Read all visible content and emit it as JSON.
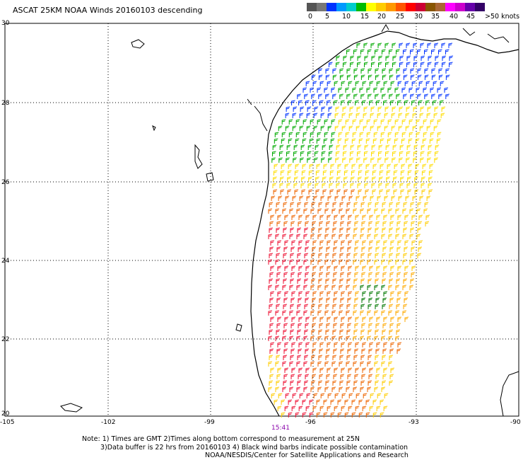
{
  "title": "ASCAT 25KM NOAA Winds 20160103 descending",
  "legend": {
    "colors": [
      "#555555",
      "#777777",
      "#0033ff",
      "#0099ff",
      "#00cccc",
      "#00bb00",
      "#ffff00",
      "#ffcc00",
      "#ff9900",
      "#ff5500",
      "#ff0000",
      "#cc0033",
      "#885500",
      "#aa6633",
      "#ff00ff",
      "#cc00cc",
      "#6600aa",
      "#330066"
    ],
    "labels": [
      "0",
      "5",
      "10",
      "15",
      "20",
      "25",
      "30",
      "35",
      "40",
      "45",
      ">50 knots"
    ]
  },
  "lat_labels": [
    "30",
    "28",
    "26",
    "24",
    "22",
    "20"
  ],
  "lon_labels": [
    "-105",
    "-102",
    "-99",
    "-96",
    "-93",
    "-90"
  ],
  "time_label": "15:41",
  "notes": [
    "Note: 1) Times are GMT 2)Times along bottom correspond to measurement at 25N",
    "3)Data buffer is 22 hrs from 20160103 4) Black wind barbs indicate possible contamination",
    "NOAA/NESDIS/Center for Satellite Applications and Research"
  ],
  "map_extent": {
    "lon_min": -105,
    "lon_max": -90,
    "lat_min": 20,
    "lat_max": 30
  }
}
